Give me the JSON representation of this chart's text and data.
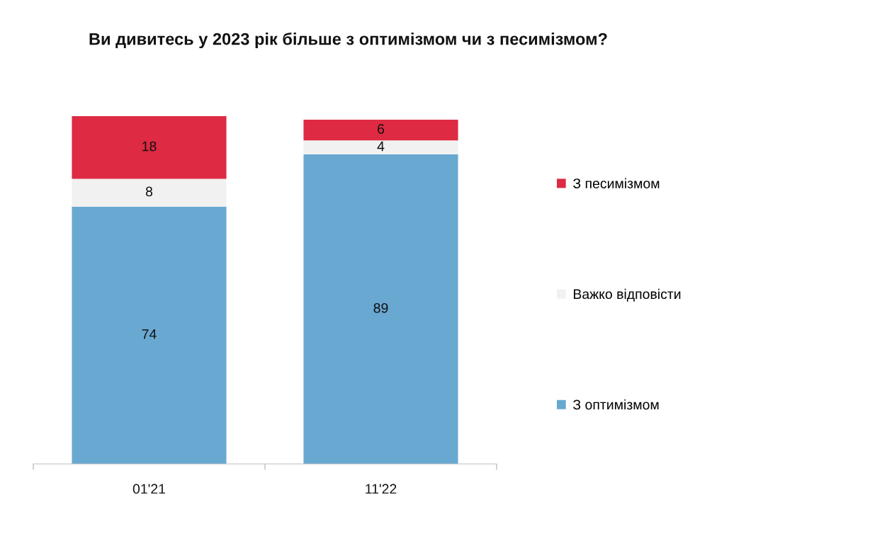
{
  "chart_data": {
    "type": "bar",
    "title": "Ви дивитесь у 2023 рік більше з оптимізмом чи з песимізмом?",
    "categories": [
      "01'21",
      "11'22"
    ],
    "series": [
      {
        "name": "З оптимізмом",
        "color": "#69a8d1",
        "values": [
          74,
          89
        ]
      },
      {
        "name": "Важко відповісти",
        "color": "#f1f1f2",
        "values": [
          8,
          4
        ]
      },
      {
        "name": "З песимізмом",
        "color": "#de2a43",
        "values": [
          18,
          6
        ]
      }
    ],
    "stacked": true,
    "data_labels": true,
    "legend": "right",
    "grid": false
  }
}
